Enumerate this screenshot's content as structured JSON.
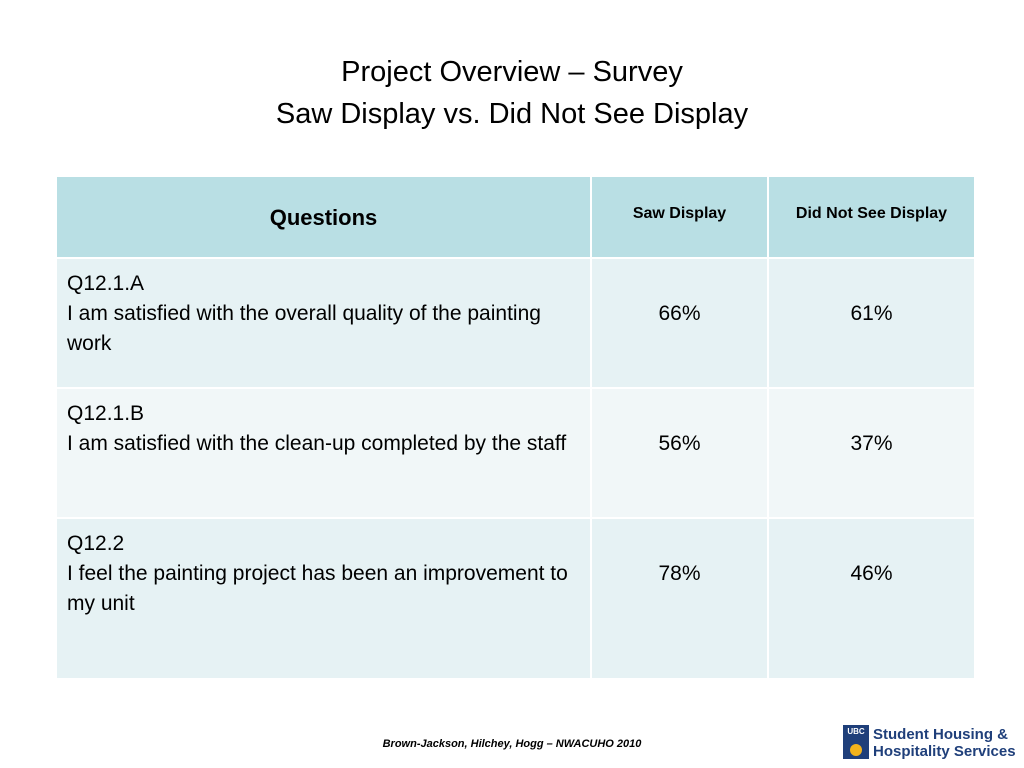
{
  "header": {
    "title": [
      "Project Overview – Survey",
      "Saw Display vs. Did Not See Display"
    ]
  },
  "table": {
    "columns": [
      "Questions",
      "Saw Display",
      "Did Not See Display"
    ],
    "rows": [
      {
        "id": "Q12.1.A",
        "question": "I am satisfied with the overall quality of the painting work",
        "saw": "66%",
        "not_seen": "61%"
      },
      {
        "id": "Q12.1.B",
        "question": "I am satisfied with the clean-up completed by the staff",
        "saw": "56%",
        "not_seen": "37%"
      },
      {
        "id": "Q12.2",
        "question": "I feel the painting project has been an improvement to my unit",
        "saw": "78%",
        "not_seen": "46%"
      }
    ]
  },
  "footer": {
    "credit": "Brown-Jackson, Hilchey, Hogg – NWACUHO 2010",
    "logo": {
      "crest": "UBC",
      "lines": [
        "Student Housing &",
        "Hospitality Services"
      ]
    }
  }
}
